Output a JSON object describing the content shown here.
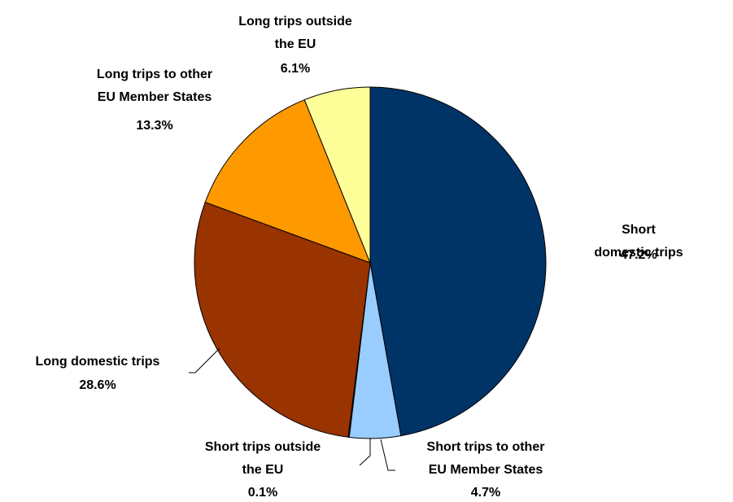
{
  "chart_data": {
    "type": "pie",
    "categories": [
      "Short domestic trips",
      "Short trips to other\nEU Member States",
      "Short trips outside\nthe EU",
      "Long domestic trips",
      "Long trips to other\nEU Member States",
      "Long trips outside\nthe EU"
    ],
    "values": [
      47.2,
      4.7,
      0.1,
      28.6,
      13.3,
      6.1
    ],
    "value_labels": [
      "47.2%",
      "4.7%",
      "0.1%",
      "28.6%",
      "13.3%",
      "6.1%"
    ],
    "colors": [
      "#003366",
      "#99ccff",
      "#333399",
      "#993300",
      "#ff9900",
      "#ffff99"
    ]
  }
}
